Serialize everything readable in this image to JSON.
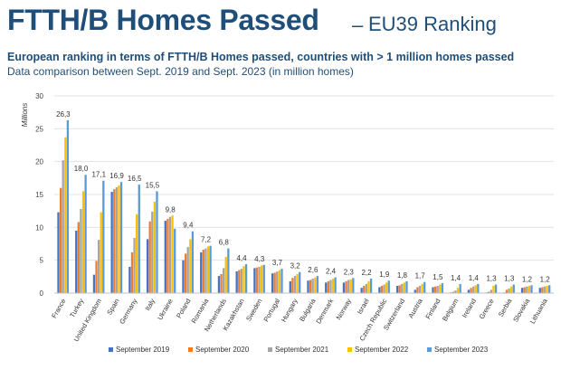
{
  "header": {
    "title": "FTTH/B Homes Passed",
    "separator": "–",
    "title_suffix": "EU39 Ranking",
    "subtitle": "European ranking in terms of FTTH/B Homes passed, countries with > 1 million homes passed",
    "subtitle2": "Data comparison between Sept. 2019 and Sept. 2023 (in million homes)"
  },
  "chart_data": {
    "type": "bar",
    "ylabel": "Millions",
    "ylim": [
      0,
      30
    ],
    "yticks": [
      0,
      5,
      10,
      15,
      20,
      25,
      30
    ],
    "grid": true,
    "legend_position": "bottom",
    "categories": [
      "France",
      "Turkey",
      "United Kingdom",
      "Spain",
      "Germany",
      "Italy",
      "Ukraine",
      "Poland",
      "Romania",
      "Netherlands",
      "Kazakhstan",
      "Sweden",
      "Portugal",
      "Hungary",
      "Bulgaria",
      "Denmark",
      "Norway",
      "Israel",
      "Czech Republic",
      "Switzerland",
      "Austria",
      "Finland",
      "Belgium",
      "Ireland",
      "Greece",
      "Serbia",
      "Slovakia",
      "Lithuania"
    ],
    "data_labels": [
      "26,3",
      "18,0",
      "17,1",
      "16,9",
      "16,5",
      "15,5",
      "9,8",
      "9,4",
      "7,2",
      "6,8",
      "4,4",
      "4,3",
      "3,7",
      "3,2",
      "2,6",
      "2,4",
      "2,3",
      "2,2",
      "1,9",
      "1,8",
      "1,7",
      "1,5",
      "1,4",
      "1,4",
      "1,3",
      "1,3",
      "1,2",
      "1,2"
    ],
    "series": [
      {
        "name": "September 2019",
        "color": "#4472c4",
        "values": [
          12.3,
          9.5,
          2.8,
          15.4,
          4.0,
          8.2,
          11.0,
          5.0,
          6.2,
          2.6,
          3.3,
          3.8,
          3.0,
          1.8,
          1.9,
          1.6,
          1.6,
          0.8,
          0.9,
          1.1,
          0.5,
          0.9,
          0.1,
          0.5,
          0.1,
          0.1,
          0.8,
          0.8
        ]
      },
      {
        "name": "September 2020",
        "color": "#ed7d31",
        "values": [
          16.0,
          10.8,
          4.9,
          15.8,
          6.2,
          10.9,
          11.3,
          6.0,
          6.6,
          2.9,
          3.5,
          3.9,
          3.1,
          2.3,
          2.0,
          1.8,
          1.8,
          1.1,
          1.1,
          1.2,
          0.9,
          1.0,
          0.2,
          0.8,
          0.2,
          0.5,
          0.9,
          0.9
        ]
      },
      {
        "name": "September 2021",
        "color": "#a5a5a5",
        "values": [
          20.2,
          12.8,
          8.1,
          16.1,
          8.4,
          12.4,
          11.6,
          7.0,
          6.8,
          3.8,
          3.7,
          4.0,
          3.3,
          2.6,
          2.2,
          2.0,
          2.0,
          1.4,
          1.3,
          1.4,
          1.1,
          1.1,
          0.4,
          1.0,
          0.5,
          0.7,
          1.0,
          1.0
        ]
      },
      {
        "name": "September 2022",
        "color": "#ffc000",
        "values": [
          23.7,
          15.5,
          12.3,
          16.4,
          12.0,
          13.9,
          11.8,
          8.2,
          7.1,
          5.5,
          4.1,
          4.2,
          3.5,
          2.9,
          2.4,
          2.2,
          2.1,
          1.8,
          1.6,
          1.6,
          1.4,
          1.3,
          0.8,
          1.2,
          1.1,
          1.0,
          1.1,
          1.1
        ]
      },
      {
        "name": "September 2023",
        "color": "#5b9bd5",
        "values": [
          26.3,
          18.0,
          17.1,
          16.9,
          16.5,
          15.5,
          9.8,
          9.4,
          7.2,
          6.8,
          4.4,
          4.3,
          3.7,
          3.2,
          2.6,
          2.4,
          2.3,
          2.2,
          1.9,
          1.8,
          1.7,
          1.5,
          1.4,
          1.4,
          1.3,
          1.3,
          1.2,
          1.2
        ]
      }
    ]
  }
}
